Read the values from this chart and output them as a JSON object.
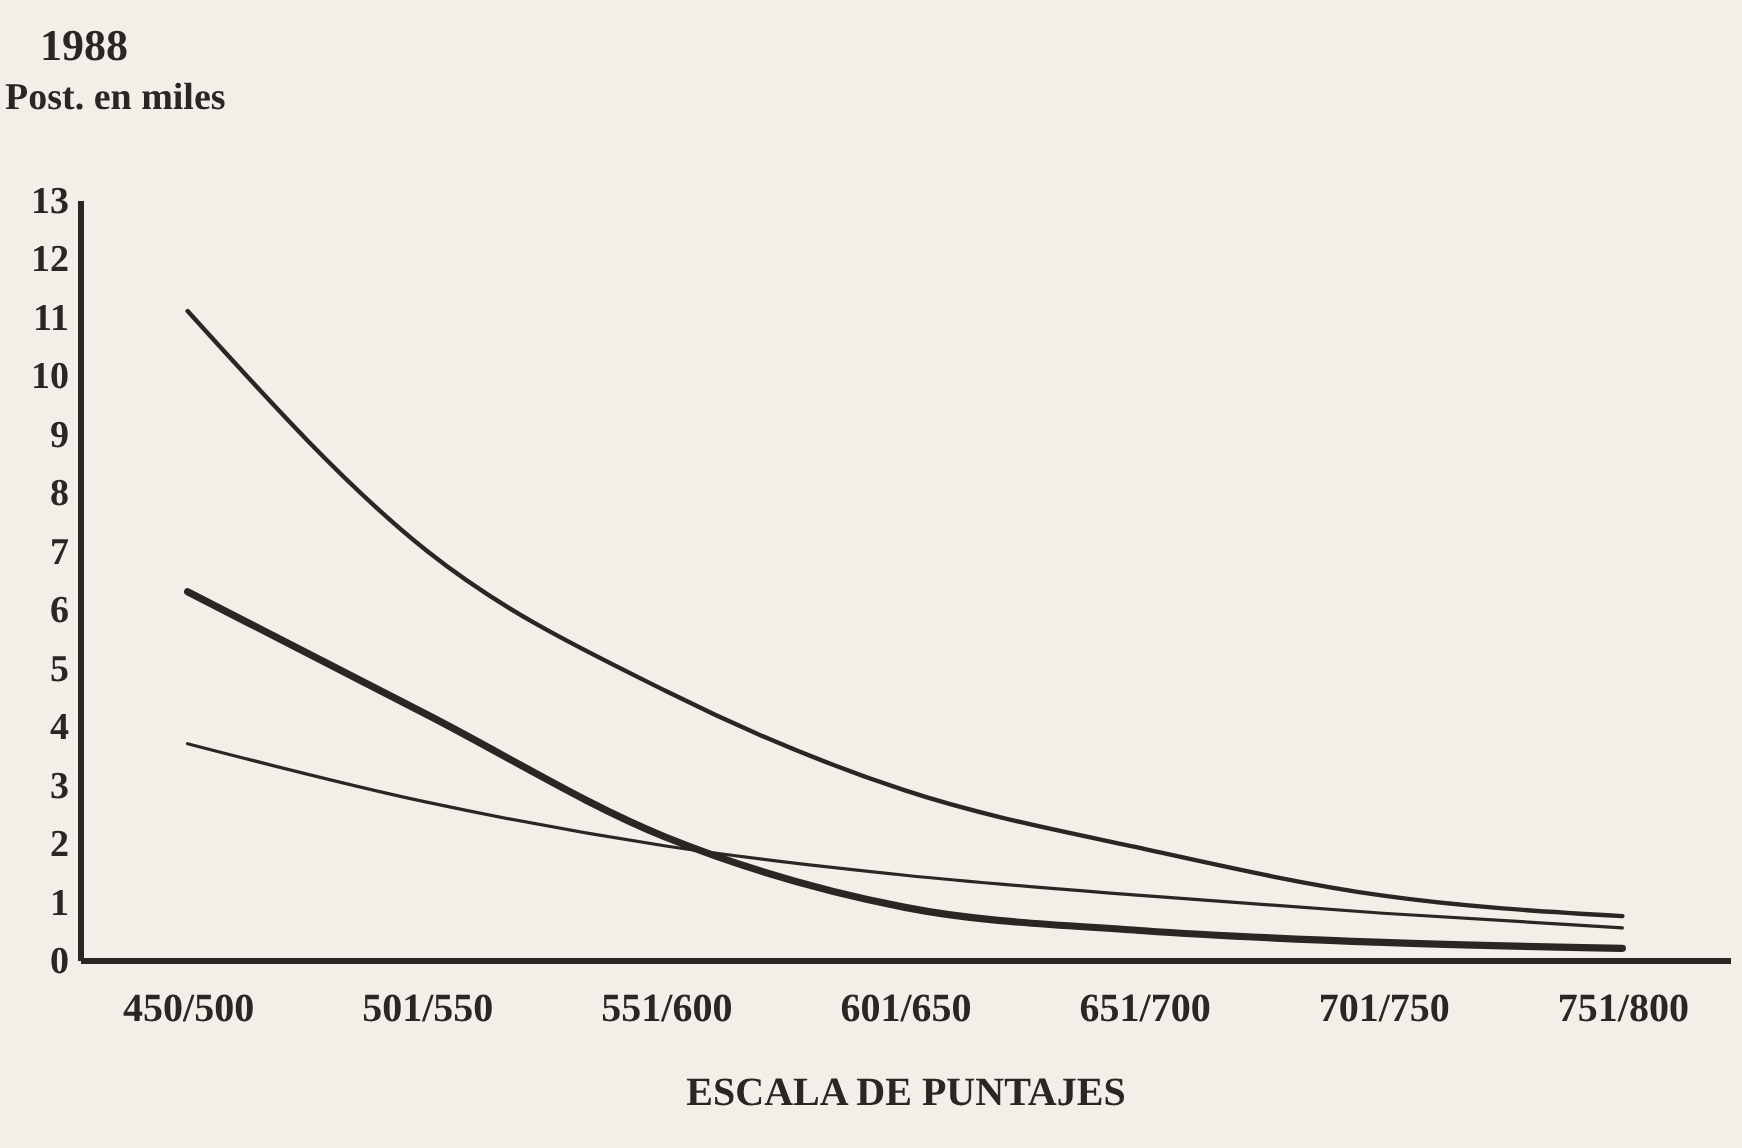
{
  "chart_data": {
    "type": "line",
    "title": "1988",
    "ylabel": "Post. en miles",
    "xlabel": "ESCALA DE PUNTAJES",
    "categories": [
      "450/500",
      "501/550",
      "551/600",
      "601/650",
      "651/700",
      "701/750",
      "751/800"
    ],
    "series": [
      {
        "color": "#2a2624",
        "values": [
          11.1,
          7.0,
          4.6,
          2.9,
          1.9,
          1.1,
          0.75
        ]
      },
      {
        "color": "#2a2624",
        "values": [
          6.3,
          4.2,
          2.1,
          0.9,
          0.5,
          0.3,
          0.2
        ]
      },
      {
        "color": "#2a2624",
        "values": [
          3.7,
          2.7,
          1.95,
          1.45,
          1.1,
          0.8,
          0.55
        ]
      }
    ],
    "ylim": [
      0,
      13
    ],
    "yticks": [
      0,
      1,
      2,
      3,
      4,
      5,
      6,
      7,
      8,
      9,
      10,
      11,
      12,
      13
    ],
    "grid": false,
    "marker": "none",
    "line_style": "solid"
  }
}
